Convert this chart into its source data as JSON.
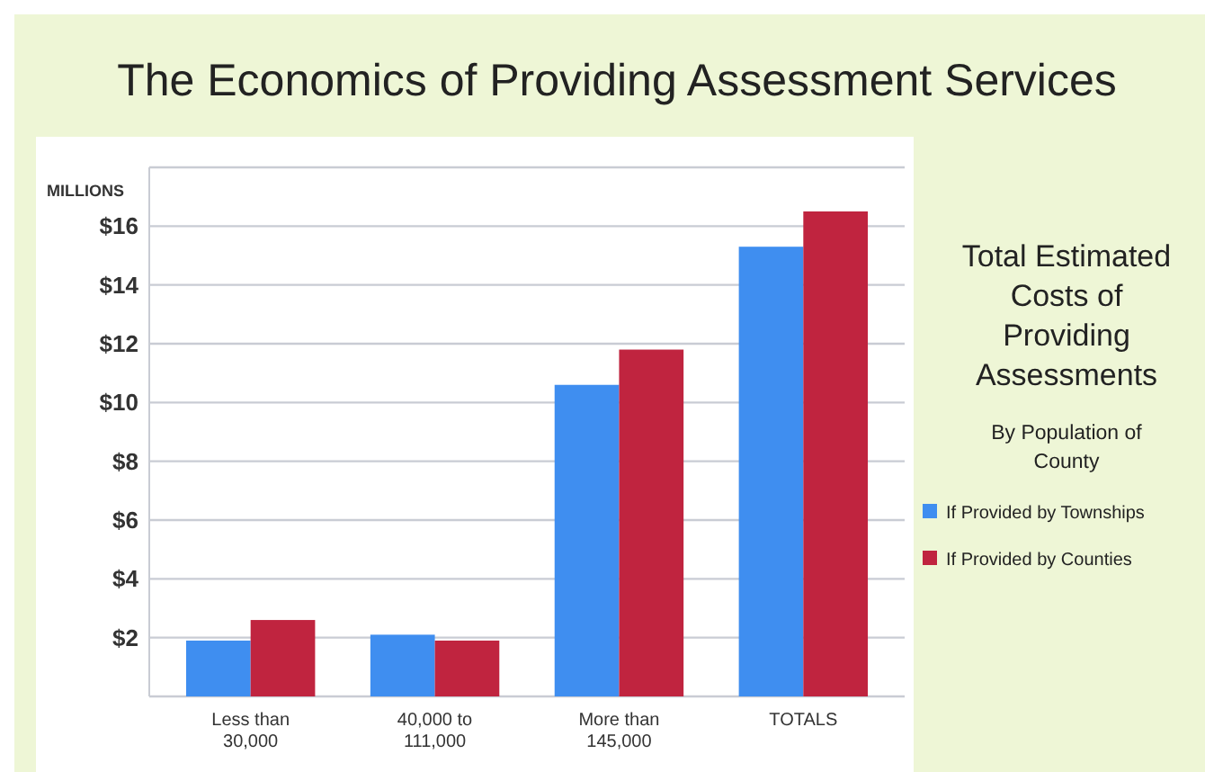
{
  "chart_data": {
    "type": "bar",
    "title": "The Economics of Providing Assessment Services",
    "ylabel": "MILLIONS",
    "legend_title": "Total Estimated Costs of Providing Assessments",
    "subtitle": "By Population of County",
    "categories": [
      "Less than\n30,000",
      "40,000 to\n111,000",
      "More than\n145,000",
      "TOTALS"
    ],
    "series": [
      {
        "name": "If Provided by Townships",
        "color": "#3f8ef0",
        "values": [
          1.9,
          2.1,
          10.6,
          15.3
        ]
      },
      {
        "name": "If Provided by Counties",
        "color": "#c0243f",
        "values": [
          2.6,
          1.9,
          11.8,
          16.5
        ]
      }
    ],
    "ylim": [
      0,
      18
    ],
    "yticks": [
      {
        "value": 0,
        "label": null
      },
      {
        "value": 2,
        "label": "$2"
      },
      {
        "value": 4,
        "label": "$4"
      },
      {
        "value": 6,
        "label": "$6"
      },
      {
        "value": 8,
        "label": "$8"
      },
      {
        "value": 10,
        "label": "$10"
      },
      {
        "value": 12,
        "label": "$12"
      },
      {
        "value": 14,
        "label": "$14"
      },
      {
        "value": 16,
        "label": "$16"
      },
      {
        "value": 18,
        "label": null
      }
    ],
    "grid": true,
    "legend": "right"
  }
}
